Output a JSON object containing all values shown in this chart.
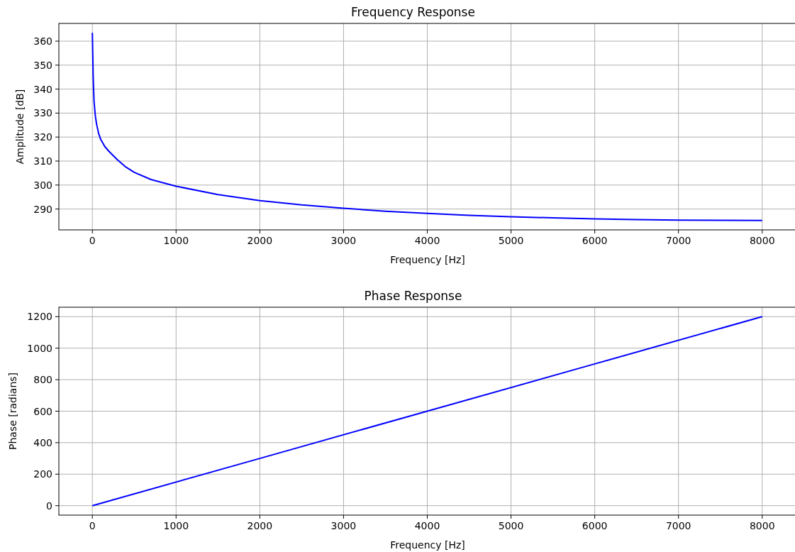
{
  "chart_data": [
    {
      "type": "line",
      "title": "Frequency Response",
      "xlabel": "Frequency [Hz]",
      "ylabel": "Amplitude [dB]",
      "xlim": [
        -400,
        8400
      ],
      "ylim": [
        281.3,
        367.4
      ],
      "xticks": [
        0,
        1000,
        2000,
        3000,
        4000,
        5000,
        6000,
        7000,
        8000
      ],
      "yticks": [
        290,
        300,
        310,
        320,
        330,
        340,
        350,
        360
      ],
      "grid": true,
      "series": [
        {
          "color": "#0000ff",
          "x": [
            0,
            10,
            20,
            35,
            50,
            75,
            100,
            150,
            200,
            300,
            400,
            500,
            700,
            1000,
            1500,
            2000,
            2500,
            3000,
            3500,
            4000,
            4500,
            5000,
            5500,
            6000,
            6500,
            7000,
            7500,
            8000
          ],
          "values": [
            363.5,
            345,
            335,
            329,
            325.5,
            321.5,
            319,
            316,
            314,
            310.5,
            307.5,
            305.3,
            302.3,
            299.5,
            296,
            293.5,
            291.7,
            290.3,
            289.1,
            288.2,
            287.4,
            286.8,
            286.3,
            285.9,
            285.6,
            285.4,
            285.3,
            285.2
          ]
        }
      ]
    },
    {
      "type": "line",
      "title": "Phase Response",
      "xlabel": "Frequency [Hz]",
      "ylabel": "Phase [radians]",
      "xlim": [
        -400,
        8400
      ],
      "ylim": [
        -60,
        1260
      ],
      "xticks": [
        0,
        1000,
        2000,
        3000,
        4000,
        5000,
        6000,
        7000,
        8000
      ],
      "yticks": [
        0,
        200,
        400,
        600,
        800,
        1000,
        1200
      ],
      "grid": true,
      "series": [
        {
          "color": "#0000ff",
          "x": [
            0,
            2000,
            4000,
            6000,
            8000
          ],
          "values": [
            0,
            300,
            600,
            900,
            1200
          ]
        }
      ]
    }
  ]
}
